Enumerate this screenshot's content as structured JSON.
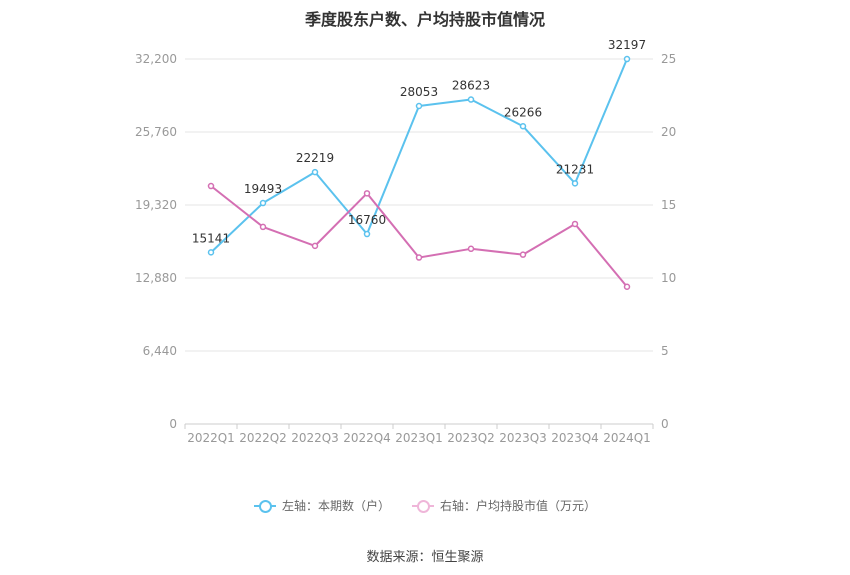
{
  "chart_data": {
    "type": "line",
    "title": "季度股东户数、户均持股市值情况",
    "categories": [
      "2022Q1",
      "2022Q2",
      "2022Q3",
      "2022Q4",
      "2023Q1",
      "2023Q2",
      "2023Q3",
      "2023Q4",
      "2024Q1"
    ],
    "left_axis": {
      "ticks": [
        0,
        6440,
        12880,
        19320,
        25760,
        32200
      ],
      "tick_labels": [
        "0",
        "6,440",
        "12,880",
        "19,320",
        "25,760",
        "32,200"
      ],
      "ylim": [
        0,
        32200
      ]
    },
    "right_axis": {
      "ticks": [
        0,
        5,
        10,
        15,
        20,
        25
      ],
      "tick_labels": [
        "0",
        "5",
        "10",
        "15",
        "20",
        "25"
      ],
      "ylim": [
        0,
        25
      ]
    },
    "series": [
      {
        "name": "左轴：本期数（户）",
        "axis": "left",
        "color": "#5bc2ee",
        "values": [
          15141,
          19493,
          22219,
          16760,
          28053,
          28623,
          26266,
          21231,
          32197
        ],
        "labels": [
          "15141",
          "19493",
          "22219",
          "16760",
          "28053",
          "28623",
          "26266",
          "21231",
          "32197"
        ]
      },
      {
        "name": "右轴：户均持股市值（万元）",
        "axis": "right",
        "color": "#d46fb3",
        "values": [
          16.3,
          13.5,
          12.2,
          15.8,
          11.4,
          12.0,
          11.6,
          13.7,
          9.4
        ]
      }
    ],
    "grid": true,
    "legend_position": "bottom"
  },
  "source": "数据来源：恒生聚源"
}
